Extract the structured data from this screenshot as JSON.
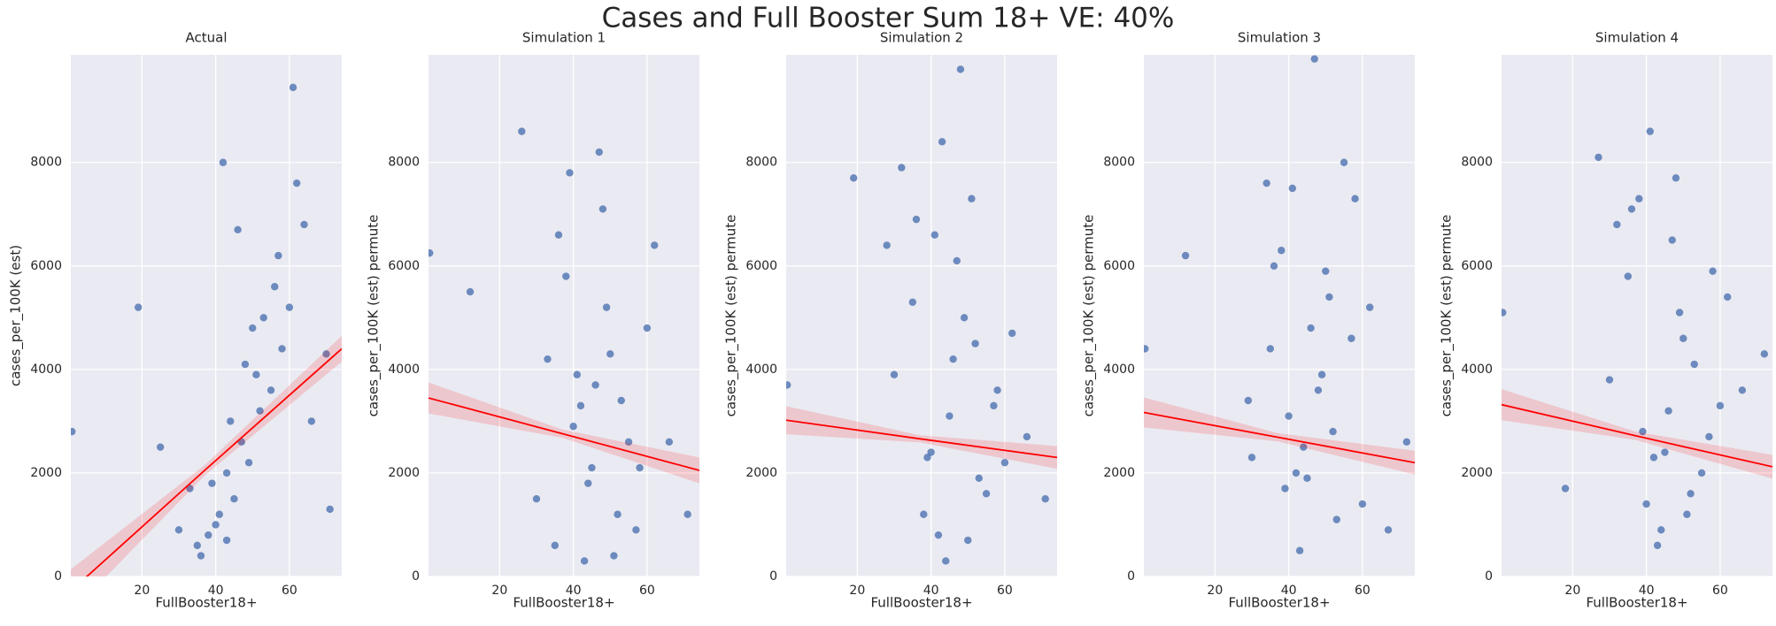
{
  "title": "Cases and Full Booster Sum 18+ VE: 40%",
  "chart_data": [
    {
      "type": "scatter",
      "title": "Actual",
      "x_label": "FullBooster18+",
      "y_label": "cases_per_100K (est)",
      "color": "#4c72b0",
      "xlim": [
        0.7,
        74.2
      ],
      "ylim": [
        0,
        10080
      ],
      "xticks": [
        20,
        40,
        60
      ],
      "yticks": [
        0,
        2000,
        4000,
        6000,
        8000
      ],
      "grid": true,
      "x": [
        45,
        38,
        52,
        41,
        60,
        35,
        48,
        55,
        43,
        50,
        30,
        62,
        40,
        47,
        57,
        53,
        36,
        44,
        66,
        25,
        49,
        42,
        58,
        39,
        51,
        19,
        71,
        46,
        33,
        64,
        1,
        70,
        43,
        56,
        61
      ],
      "values": [
        1500,
        800,
        3200,
        1200,
        5200,
        600,
        4100,
        3600,
        2000,
        4800,
        900,
        7600,
        1000,
        2600,
        6200,
        5000,
        400,
        3000,
        3000,
        2500,
        2200,
        8000,
        4400,
        1800,
        3900,
        5200,
        1300,
        6700,
        1700,
        6800,
        2800,
        4300,
        700,
        5600,
        9450
      ],
      "regression": {
        "color": "#ff0000",
        "x": [
          0.7,
          37,
          74.2
        ],
        "values": [
          -280,
          2050,
          4400
        ],
        "ci_lower": [
          -700,
          1950,
          4150
        ],
        "ci_upper": [
          140,
          2150,
          4650
        ]
      }
    },
    {
      "type": "scatter",
      "title": "Simulation 1",
      "x_label": "FullBooster18+",
      "y_label": "cases_per_100K (est) permute",
      "color": "#4c72b0",
      "xlim": [
        0.7,
        74.2
      ],
      "ylim": [
        0,
        10080
      ],
      "xticks": [
        20,
        40,
        60
      ],
      "yticks": [
        0,
        2000,
        4000,
        6000,
        8000
      ],
      "grid": true,
      "x": [
        45,
        38,
        52,
        41,
        60,
        35,
        48,
        55,
        43,
        50,
        30,
        62,
        40,
        47,
        57,
        53,
        36,
        44,
        66,
        26,
        49,
        42,
        58,
        39,
        51,
        12,
        71,
        46,
        33,
        1
      ],
      "values": [
        2100,
        5800,
        1200,
        3900,
        4800,
        600,
        7100,
        2600,
        300,
        4300,
        1500,
        6400,
        2900,
        8200,
        900,
        3400,
        6600,
        1800,
        2600,
        8600,
        5200,
        3300,
        2100,
        7800,
        400,
        5500,
        1200,
        3700,
        4200,
        6250
      ],
      "regression": {
        "color": "#ff0000",
        "x": [
          0.7,
          37,
          74.2
        ],
        "values": [
          3450,
          2760,
          2050
        ],
        "ci_lower": [
          3150,
          2680,
          1800
        ],
        "ci_upper": [
          3750,
          2840,
          2300
        ]
      }
    },
    {
      "type": "scatter",
      "title": "Simulation 2",
      "x_label": "FullBooster18+",
      "y_label": "cases_per_100K (est) permute",
      "color": "#4c72b0",
      "xlim": [
        0.7,
        74.2
      ],
      "ylim": [
        0,
        10080
      ],
      "xticks": [
        20,
        40,
        60
      ],
      "yticks": [
        0,
        2000,
        4000,
        6000,
        8000
      ],
      "grid": true,
      "x": [
        45,
        38,
        52,
        41,
        60,
        35,
        48,
        55,
        43,
        50,
        30,
        62,
        40,
        47,
        57,
        53,
        36,
        44,
        66,
        19,
        49,
        42,
        58,
        39,
        51,
        32,
        71,
        46,
        28,
        1
      ],
      "values": [
        3100,
        1200,
        4500,
        6600,
        2200,
        5300,
        9800,
        1600,
        8400,
        700,
        3900,
        4700,
        2400,
        6100,
        3300,
        1900,
        6900,
        300,
        2700,
        7700,
        5000,
        800,
        3600,
        2300,
        7300,
        7900,
        1500,
        4200,
        6400,
        3700
      ],
      "regression": {
        "color": "#ff0000",
        "x": [
          0.7,
          37,
          74.2
        ],
        "values": [
          3020,
          2660,
          2300
        ],
        "ci_lower": [
          2750,
          2590,
          2080
        ],
        "ci_upper": [
          3290,
          2730,
          2520
        ]
      }
    },
    {
      "type": "scatter",
      "title": "Simulation 3",
      "x_label": "FullBooster18+",
      "y_label": "cases_per_100K (est) permute",
      "color": "#4c72b0",
      "xlim": [
        0.7,
        74.2
      ],
      "ylim": [
        0,
        10080
      ],
      "xticks": [
        20,
        40,
        60
      ],
      "yticks": [
        0,
        2000,
        4000,
        6000,
        8000
      ],
      "grid": true,
      "x": [
        45,
        38,
        52,
        41,
        60,
        35,
        48,
        55,
        43,
        50,
        30,
        62,
        40,
        47,
        57,
        53,
        36,
        44,
        67,
        12,
        49,
        42,
        58,
        39,
        51,
        29,
        72,
        46,
        34,
        1
      ],
      "values": [
        1900,
        6300,
        2800,
        7500,
        1400,
        4400,
        3600,
        8000,
        500,
        5900,
        2300,
        5200,
        3100,
        10000,
        4600,
        1100,
        6000,
        2500,
        900,
        6200,
        3900,
        2000,
        7300,
        1700,
        5400,
        3400,
        2600,
        4800,
        7600,
        4400
      ],
      "regression": {
        "color": "#ff0000",
        "x": [
          0.7,
          37,
          74.2
        ],
        "values": [
          3170,
          2690,
          2200
        ],
        "ci_lower": [
          2880,
          2610,
          1970
        ],
        "ci_upper": [
          3460,
          2770,
          2430
        ]
      }
    },
    {
      "type": "scatter",
      "title": "Simulation 4",
      "x_label": "FullBooster18+",
      "y_label": "cases_per_100K (est) permute",
      "color": "#4c72b0",
      "xlim": [
        0.7,
        74.2
      ],
      "ylim": [
        0,
        10080
      ],
      "xticks": [
        20,
        40,
        60
      ],
      "yticks": [
        0,
        2000,
        4000,
        6000,
        8000
      ],
      "grid": true,
      "x": [
        45,
        38,
        52,
        41,
        60,
        35,
        48,
        55,
        43,
        50,
        30,
        62,
        40,
        47,
        57,
        53,
        36,
        44,
        66,
        27,
        49,
        42,
        58,
        39,
        51,
        18,
        72,
        46,
        32,
        1
      ],
      "values": [
        2400,
        7300,
        1600,
        8600,
        3300,
        5800,
        7700,
        2000,
        600,
        4600,
        3800,
        5400,
        1400,
        6500,
        2700,
        4100,
        7100,
        900,
        3600,
        8100,
        5100,
        2300,
        5900,
        2800,
        1200,
        1700,
        4300,
        3200,
        6800,
        5100
      ],
      "regression": {
        "color": "#ff0000",
        "x": [
          0.7,
          37,
          74.2
        ],
        "values": [
          3320,
          2720,
          2120
        ],
        "ci_lower": [
          3020,
          2640,
          1890
        ],
        "ci_upper": [
          3620,
          2800,
          2350
        ]
      }
    }
  ]
}
